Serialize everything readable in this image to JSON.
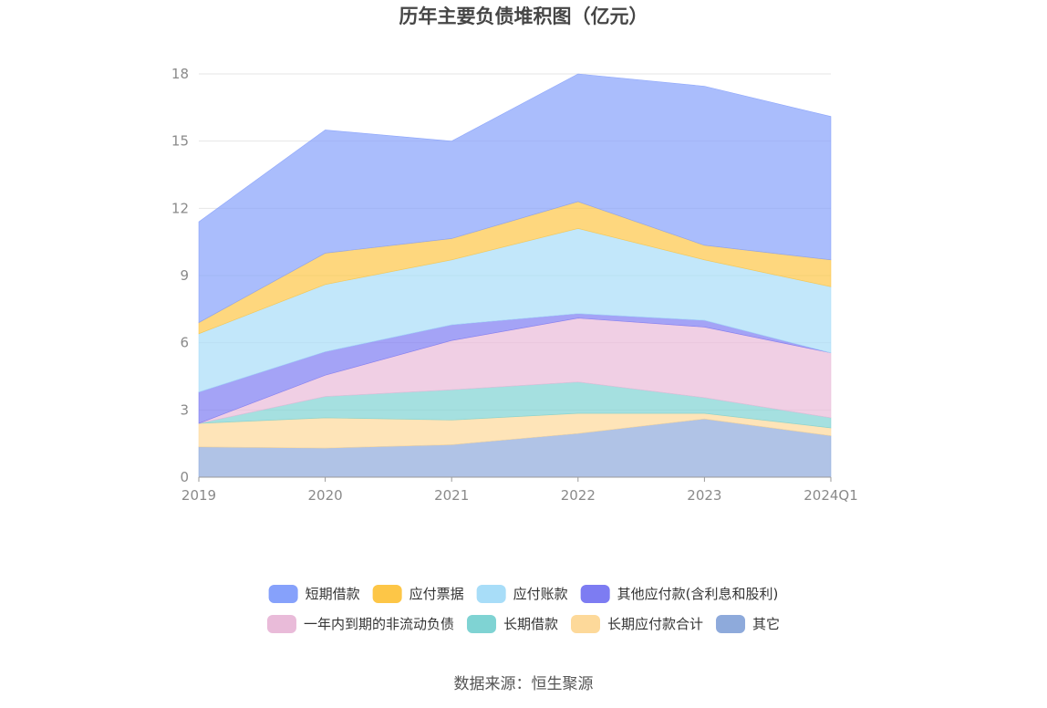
{
  "chart_data": {
    "type": "area",
    "title": "历年主要负债堆积图（亿元）",
    "source": "数据来源：恒生聚源",
    "categories": [
      "2019",
      "2020",
      "2021",
      "2022",
      "2023",
      "2024Q1"
    ],
    "ylim": [
      0,
      18
    ],
    "yticks": [
      "0",
      "3",
      "6",
      "9",
      "12",
      "15",
      "18"
    ],
    "stacked": true,
    "grid": true,
    "legend_position": "bottom",
    "series": [
      {
        "name": "其它",
        "color": "#8eaadb",
        "values": [
          1.35,
          1.3,
          1.45,
          1.95,
          2.6,
          1.85
        ]
      },
      {
        "name": "长期应付款合计",
        "color": "#fdd99a",
        "values": [
          1.05,
          1.35,
          1.1,
          0.9,
          0.25,
          0.35
        ]
      },
      {
        "name": "长期借款",
        "color": "#7fd3d3",
        "values": [
          0.0,
          0.95,
          1.35,
          1.4,
          0.7,
          0.45
        ]
      },
      {
        "name": "一年内到期的非流动负债",
        "color": "#e9bbd9",
        "values": [
          0.0,
          0.95,
          2.2,
          2.85,
          3.15,
          2.9
        ]
      },
      {
        "name": "其他应付款(含利息和股利)",
        "color": "#7d7cf2",
        "values": [
          1.4,
          1.05,
          0.7,
          0.2,
          0.3,
          0.0
        ]
      },
      {
        "name": "应付账款",
        "color": "#a8ddf8",
        "values": [
          2.6,
          3.0,
          2.9,
          3.8,
          2.7,
          2.95
        ]
      },
      {
        "name": "应付票据",
        "color": "#fdc647",
        "values": [
          0.5,
          1.4,
          0.95,
          1.2,
          0.65,
          1.2
        ]
      },
      {
        "name": "短期借款",
        "color": "#86a1fb",
        "values": [
          4.5,
          5.5,
          4.35,
          5.7,
          7.1,
          6.4
        ]
      }
    ],
    "legend_order": [
      "短期借款",
      "应付票据",
      "应付账款",
      "其他应付款(含利息和股利)",
      "一年内到期的非流动负债",
      "长期借款",
      "长期应付款合计",
      "其它"
    ]
  }
}
